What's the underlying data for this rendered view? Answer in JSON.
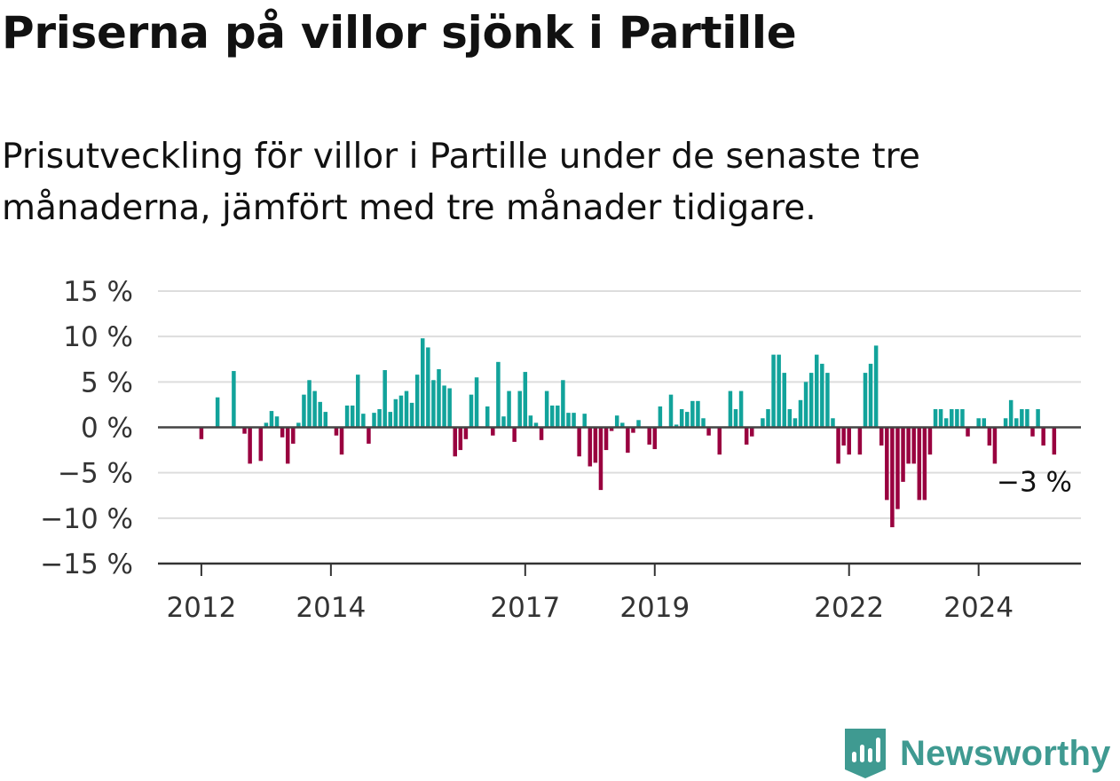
{
  "title": "Priserna på villor sjönk i Partille",
  "subtitle": "Prisutveckling för villor i Partille under de senaste tre månaderna, jämfört med tre månader tidigare.",
  "brand": {
    "name": "Newsworthy",
    "icon": "newsworthy-logo-icon",
    "color": "#3f9a91"
  },
  "colors": {
    "positive": "#12a39b",
    "negative": "#99003f",
    "grid": "#dddddd",
    "axis": "#333333"
  },
  "chart_data": {
    "type": "bar",
    "title": "Priserna på villor sjönk i Partille",
    "xlabel": "",
    "ylabel": "",
    "ylim": [
      -15,
      15
    ],
    "yticks": [
      15,
      10,
      5,
      0,
      -5,
      -10,
      -15
    ],
    "ytick_labels": [
      "15 %",
      "10 %",
      "5 %",
      "0 %",
      "−5 %",
      "−10 %",
      "−15 %"
    ],
    "xticks": [
      2012,
      2014,
      2017,
      2019,
      2022,
      2024
    ],
    "xtick_labels": [
      "2012",
      "2014",
      "2017",
      "2019",
      "2022",
      "2024"
    ],
    "x_range": [
      2011.33,
      2025.58
    ],
    "grid": true,
    "legend": "none",
    "annotation": "−3 %",
    "series": [
      {
        "start_year": 2012,
        "start_month": 1,
        "frequency": "monthly",
        "values": [
          -1.3,
          0,
          0,
          3.3,
          0,
          0,
          6.2,
          0,
          -0.7,
          -4,
          0,
          -3.7,
          0.5,
          1.8,
          1.2,
          -1.1,
          -4,
          -1.8,
          0.5,
          3.6,
          5.2,
          4,
          2.8,
          1.7,
          0,
          -0.9,
          -3,
          2.4,
          2.4,
          5.8,
          1.5,
          -1.8,
          1.6,
          2,
          6.3,
          1.7,
          3.1,
          3.5,
          4,
          2.7,
          5.8,
          9.8,
          8.8,
          5.2,
          6.4,
          4.6,
          4.3,
          -3.2,
          -2.5,
          -1.3,
          3.6,
          5.5,
          0,
          2.3,
          -0.9,
          7.2,
          1.2,
          4,
          -1.6,
          4,
          6.1,
          1.3,
          0.5,
          -1.4,
          4,
          2.4,
          2.4,
          5.2,
          1.6,
          1.6,
          -3.2,
          1.5,
          -4.3,
          -3.9,
          -6.9,
          -2.5,
          -0.4,
          1.3,
          0.5,
          -2.8,
          -0.6,
          0.8,
          0,
          -1.9,
          -2.4,
          2.3,
          0,
          3.6,
          0.3,
          2,
          1.7,
          2.9,
          2.9,
          1,
          -0.9,
          0,
          -3,
          0,
          4,
          2,
          4,
          -1.9,
          -1,
          0,
          1,
          2,
          8,
          8,
          6,
          2,
          1,
          3,
          5,
          6,
          8,
          7,
          6,
          1,
          -4,
          -2,
          -3,
          0,
          -3,
          6,
          7,
          9,
          -2,
          -8,
          -11,
          -9,
          -6,
          -4,
          -4,
          -8,
          -8,
          -3,
          2,
          2,
          1,
          2,
          2,
          2,
          -1,
          0,
          1,
          1,
          -2,
          -4,
          0,
          1,
          3,
          1,
          2,
          2,
          -1,
          2,
          -2,
          0,
          -3
        ]
      }
    ]
  }
}
